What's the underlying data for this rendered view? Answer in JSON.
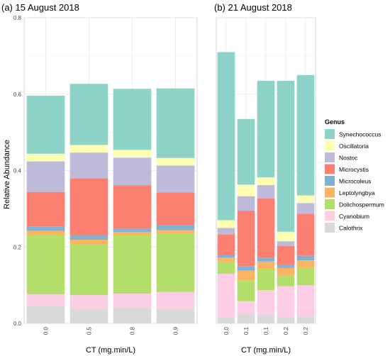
{
  "ylabel": "Relative Abundance",
  "legend": {
    "title": "Genus",
    "items": [
      {
        "name": "Synechococcus",
        "color": "#8dd3c7"
      },
      {
        "name": "Oscillatoria",
        "color": "#ffffb3"
      },
      {
        "name": "Nostoc",
        "color": "#bebada"
      },
      {
        "name": "Microcystis",
        "color": "#fb8072"
      },
      {
        "name": "Microcoleus",
        "color": "#80b1d3"
      },
      {
        "name": "Leptolyngbya",
        "color": "#fdb462"
      },
      {
        "name": "Dolichospermum",
        "color": "#b3de69"
      },
      {
        "name": "Cyanobium",
        "color": "#fccde5"
      },
      {
        "name": "Calothrix",
        "color": "#d9d9d9"
      }
    ]
  },
  "chart_data": [
    {
      "type": "bar",
      "stacked": true,
      "title": "(a) 15 August 2018",
      "xlabel": "CT (mg.min/L)",
      "ylabel": "Relative Abundance",
      "ylim": [
        0,
        0.8
      ],
      "yticks": [
        "0.0",
        "0.2",
        "0.4",
        "0.6",
        "0.8"
      ],
      "grid": true,
      "categories": [
        "0.0",
        "0.5",
        "0.8",
        "0.9"
      ],
      "series": [
        {
          "name": "Calothrix",
          "values": [
            0.047,
            0.037,
            0.042,
            0.037
          ]
        },
        {
          "name": "Cyanobium",
          "values": [
            0.03,
            0.037,
            0.036,
            0.045
          ]
        },
        {
          "name": "Dolichospermum",
          "values": [
            0.155,
            0.133,
            0.153,
            0.152
          ]
        },
        {
          "name": "Leptolyngbya",
          "values": [
            0.01,
            0.012,
            0.008,
            0.01
          ]
        },
        {
          "name": "Microcoleus",
          "values": [
            0.012,
            0.011,
            0.009,
            0.012
          ]
        },
        {
          "name": "Microcystis",
          "values": [
            0.09,
            0.15,
            0.113,
            0.087
          ]
        },
        {
          "name": "Nostoc",
          "values": [
            0.08,
            0.067,
            0.073,
            0.07
          ]
        },
        {
          "name": "Oscillatoria",
          "values": [
            0.02,
            0.02,
            0.02,
            0.02
          ]
        },
        {
          "name": "Synechococcus",
          "values": [
            0.152,
            0.16,
            0.16,
            0.182
          ]
        }
      ]
    },
    {
      "type": "bar",
      "stacked": true,
      "title": "(b) 21 August 2018",
      "xlabel": "CT (mg.min/L)",
      "ylim": [
        0,
        0.8
      ],
      "yticks": [
        "0.0",
        "0.2",
        "0.4",
        "0.6",
        "0.8"
      ],
      "grid": true,
      "categories": [
        "0.0",
        "0.1",
        "0.1",
        "0.2",
        "0.2"
      ],
      "series": [
        {
          "name": "Calothrix",
          "values": [
            0.015,
            0.025,
            0.022,
            0.017,
            0.018
          ]
        },
        {
          "name": "Cyanobium",
          "values": [
            0.115,
            0.033,
            0.065,
            0.08,
            0.082
          ]
        },
        {
          "name": "Dolichospermum",
          "values": [
            0.03,
            0.055,
            0.055,
            0.028,
            0.045
          ]
        },
        {
          "name": "Leptolyngbya",
          "values": [
            0.012,
            0.025,
            0.02,
            0.02,
            0.02
          ]
        },
        {
          "name": "Microcoleus",
          "values": [
            0.008,
            0.012,
            0.01,
            0.008,
            0.012
          ]
        },
        {
          "name": "Microcystis",
          "values": [
            0.053,
            0.145,
            0.155,
            0.05,
            0.11
          ]
        },
        {
          "name": "Nostoc",
          "values": [
            0.017,
            0.038,
            0.035,
            0.012,
            0.028
          ]
        },
        {
          "name": "Oscillatoria",
          "values": [
            0.02,
            0.03,
            0.02,
            0.025,
            0.02
          ]
        },
        {
          "name": "Synechococcus",
          "values": [
            0.44,
            0.172,
            0.253,
            0.395,
            0.315
          ]
        }
      ]
    }
  ]
}
